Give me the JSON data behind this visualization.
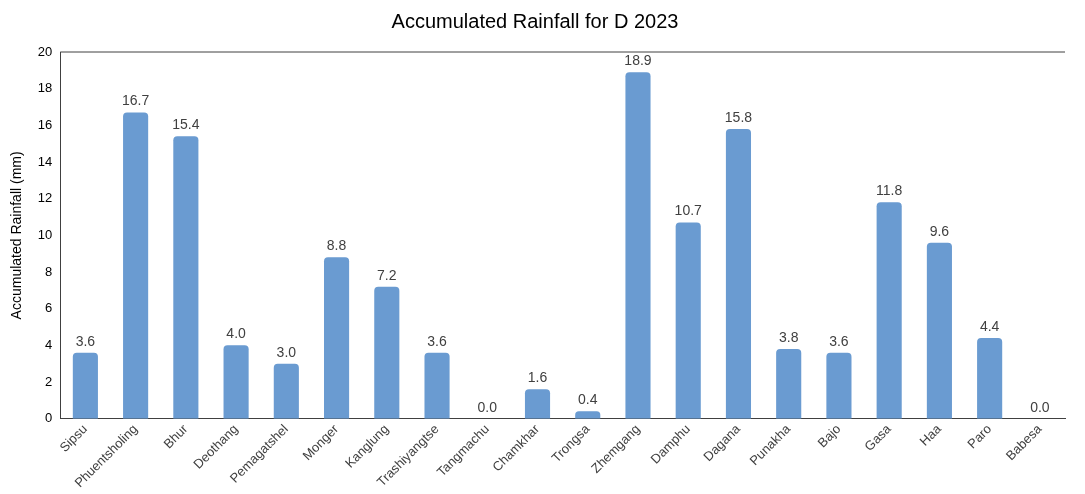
{
  "chart_data": {
    "type": "bar",
    "title": "Accumulated Rainfall for D 2023",
    "ylabel": "Accumulated Rainfall (mm)",
    "categories": [
      "Sipsu",
      "Phuentsholing",
      "Bhur",
      "Deothang",
      "Pemagatshel",
      "Monger",
      "Kanglung",
      "Trashiyangtse",
      "Tangmachu",
      "Chamkhar",
      "Trongsa",
      "Zhemgang",
      "Damphu",
      "Dagana",
      "Punakha",
      "Bajo",
      "Gasa",
      "Haa",
      "Paro",
      "Babesa"
    ],
    "values": [
      3.6,
      16.7,
      15.4,
      4.0,
      3.0,
      8.8,
      7.2,
      3.6,
      0.0,
      1.6,
      0.4,
      18.9,
      10.7,
      15.8,
      3.8,
      3.6,
      11.8,
      9.6,
      4.4,
      0.0
    ],
    "value_labels": [
      "3.6",
      "16.7",
      "15.4",
      "4.0",
      "3.0",
      "8.8",
      "7.2",
      "3.6",
      "0.0",
      "1.6",
      "0.4",
      "18.9",
      "10.7",
      "15.8",
      "3.8",
      "3.6",
      "11.8",
      "9.6",
      "4.4",
      "0.0"
    ],
    "color": "#6a9bd1",
    "ylim": [
      0,
      20
    ],
    "yticks": [
      0,
      2,
      4,
      6,
      8,
      10,
      12,
      14,
      16,
      18,
      20
    ],
    "grid": false,
    "legend": false
  }
}
